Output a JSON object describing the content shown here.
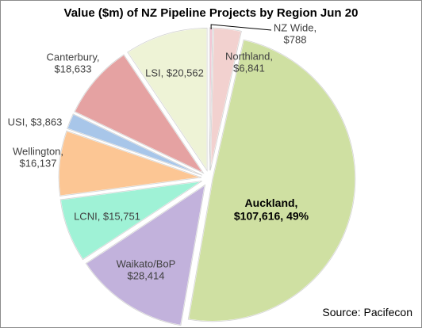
{
  "chart_data": {
    "type": "pie",
    "title": "Value ($m) of NZ Pipeline Projects by Region Jun 20",
    "source": "Source: Pacifecon",
    "slices": [
      {
        "name": "NZ Wide",
        "value": 788,
        "label_line1": "NZ Wide,",
        "label_line2": "$788",
        "color": "#f2c7d4"
      },
      {
        "name": "Northland",
        "value": 6841,
        "label_line1": "Northland,",
        "label_line2": "$6,841",
        "color": "#f2d1cf"
      },
      {
        "name": "Auckland",
        "value": 107616,
        "label_line1": "Auckland,",
        "label_line2": "$107,616, 49%",
        "color": "#cfe0a2"
      },
      {
        "name": "Waikato/BoP",
        "value": 28414,
        "label_line1": "Waikato/BoP",
        "label_line2": "$28,414",
        "color": "#c2b2dc"
      },
      {
        "name": "LCNI",
        "value": 15751,
        "label_line1": "LCNI, $15,751",
        "label_line2": "",
        "color": "#9ff2d6"
      },
      {
        "name": "Wellington",
        "value": 16137,
        "label_line1": "Wellington,",
        "label_line2": "$16,137",
        "color": "#fcc694"
      },
      {
        "name": "USI",
        "value": 3863,
        "label_line1": "USI, $3,863",
        "label_line2": "",
        "color": "#a8c6e9"
      },
      {
        "name": "Canterbury",
        "value": 18633,
        "label_line1": "Canterbury,",
        "label_line2": "$18,633",
        "color": "#e5a2a2"
      },
      {
        "name": "LSI",
        "value": 20562,
        "label_line1": "LSI, $20,562",
        "label_line2": "",
        "color": "#eef3d6"
      }
    ],
    "legend": "none"
  }
}
